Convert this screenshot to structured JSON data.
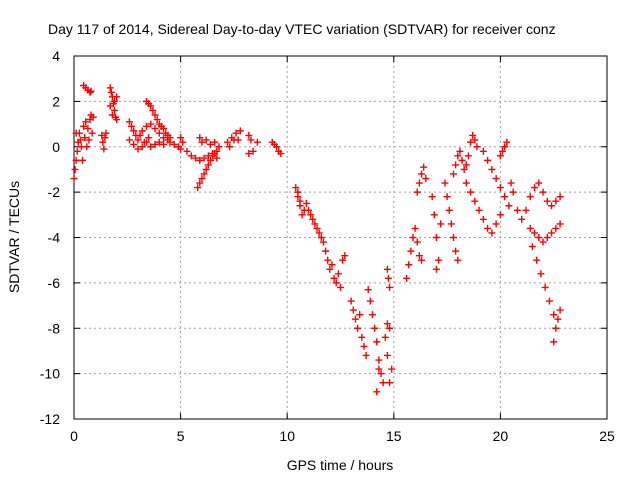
{
  "chart_data": {
    "type": "scatter",
    "title": "Day 117 of 2014, Sidereal Day-to-day VTEC variation (SDTVAR) for receiver conz",
    "xlabel": "GPS time / hours",
    "ylabel": "SDTVAR / TECUs",
    "xlim": [
      0,
      25
    ],
    "ylim": [
      -12,
      4
    ],
    "xticks": [
      0,
      5,
      10,
      15,
      20,
      25
    ],
    "yticks": [
      4,
      2,
      0,
      -2,
      -4,
      -6,
      -8,
      -10,
      -12
    ],
    "grid": true,
    "marker": "plus",
    "color": "#ff0000",
    "series": [
      {
        "points": [
          [
            0.0,
            -1.4
          ],
          [
            0.05,
            -1.0
          ],
          [
            0.1,
            -0.6
          ],
          [
            0.1,
            0.6
          ],
          [
            0.15,
            -0.2
          ],
          [
            0.2,
            0.2
          ],
          [
            0.25,
            0.6
          ],
          [
            0.3,
            0.3
          ],
          [
            0.35,
            0.0
          ],
          [
            0.4,
            -0.6
          ],
          [
            0.45,
            0.9
          ],
          [
            0.5,
            0.4
          ],
          [
            0.55,
            1.1
          ],
          [
            0.6,
            0.0
          ],
          [
            0.65,
            0.8
          ],
          [
            0.7,
            0.3
          ],
          [
            0.75,
            1.2
          ],
          [
            0.8,
            1.4
          ],
          [
            0.85,
            0.6
          ],
          [
            0.9,
            1.3
          ],
          [
            0.45,
            2.7
          ],
          [
            0.55,
            2.6
          ],
          [
            0.65,
            2.5
          ],
          [
            0.75,
            2.4
          ],
          [
            0.8,
            2.45
          ],
          [
            1.3,
            0.5
          ],
          [
            1.35,
            0.2
          ],
          [
            1.4,
            -0.1
          ],
          [
            1.45,
            0.4
          ],
          [
            1.5,
            0.6
          ],
          [
            1.7,
            2.6
          ],
          [
            1.75,
            2.4
          ],
          [
            1.8,
            2.2
          ],
          [
            1.85,
            1.9
          ],
          [
            1.9,
            1.6
          ],
          [
            1.95,
            1.3
          ],
          [
            1.7,
            1.8
          ],
          [
            1.8,
            1.4
          ],
          [
            1.9,
            2.0
          ],
          [
            2.0,
            2.2
          ],
          [
            2.0,
            1.2
          ],
          [
            2.6,
            1.1
          ],
          [
            2.7,
            0.9
          ],
          [
            2.8,
            0.7
          ],
          [
            2.9,
            0.5
          ],
          [
            3.0,
            0.3
          ],
          [
            3.1,
            0.5
          ],
          [
            3.2,
            0.7
          ],
          [
            3.3,
            0.2
          ],
          [
            3.4,
            0.9
          ],
          [
            3.5,
            0.4
          ],
          [
            2.6,
            0.3
          ],
          [
            2.8,
            0.1
          ],
          [
            3.0,
            -0.1
          ],
          [
            3.2,
            0.0
          ],
          [
            3.4,
            0.2
          ],
          [
            3.6,
            0.0
          ],
          [
            3.8,
            0.1
          ],
          [
            4.0,
            0.2
          ],
          [
            4.2,
            0.1
          ],
          [
            4.4,
            0.3
          ],
          [
            3.4,
            2.0
          ],
          [
            3.5,
            1.9
          ],
          [
            3.6,
            1.8
          ],
          [
            3.7,
            1.6
          ],
          [
            3.8,
            1.4
          ],
          [
            3.9,
            1.2
          ],
          [
            4.0,
            1.0
          ],
          [
            4.1,
            0.9
          ],
          [
            4.2,
            0.8
          ],
          [
            4.3,
            0.6
          ],
          [
            4.4,
            0.5
          ],
          [
            4.5,
            0.4
          ],
          [
            3.6,
            1.0
          ],
          [
            3.8,
            0.8
          ],
          [
            4.0,
            0.6
          ],
          [
            4.2,
            0.4
          ],
          [
            4.5,
            0.2
          ],
          [
            4.7,
            0.1
          ],
          [
            4.9,
            0.0
          ],
          [
            5.0,
            -0.1
          ],
          [
            5.0,
            0.4
          ],
          [
            5.1,
            0.2
          ],
          [
            5.3,
            -0.2
          ],
          [
            5.5,
            -0.4
          ],
          [
            5.7,
            -0.5
          ],
          [
            5.9,
            -0.6
          ],
          [
            6.1,
            -0.5
          ],
          [
            6.3,
            -0.4
          ],
          [
            6.5,
            -0.3
          ],
          [
            6.7,
            -0.2
          ],
          [
            5.8,
            -1.8
          ],
          [
            5.9,
            -1.6
          ],
          [
            6.0,
            -1.4
          ],
          [
            6.1,
            -1.2
          ],
          [
            6.2,
            -1.0
          ],
          [
            6.3,
            -0.8
          ],
          [
            6.4,
            -0.6
          ],
          [
            6.5,
            -0.4
          ],
          [
            6.6,
            -0.3
          ],
          [
            6.7,
            -0.5
          ],
          [
            5.9,
            0.4
          ],
          [
            6.0,
            0.2
          ],
          [
            6.2,
            0.3
          ],
          [
            6.4,
            0.1
          ],
          [
            6.6,
            0.2
          ],
          [
            6.8,
            0.0
          ],
          [
            7.2,
            0.2
          ],
          [
            7.3,
            0.0
          ],
          [
            7.4,
            0.4
          ],
          [
            7.5,
            0.3
          ],
          [
            7.6,
            0.6
          ],
          [
            7.7,
            0.3
          ],
          [
            7.8,
            0.7
          ],
          [
            8.2,
            0.5
          ],
          [
            8.3,
            0.3
          ],
          [
            8.6,
            0.2
          ],
          [
            8.4,
            -0.2
          ],
          [
            8.2,
            -0.3
          ],
          [
            9.3,
            0.2
          ],
          [
            9.4,
            0.1
          ],
          [
            9.5,
            0.0
          ],
          [
            9.6,
            -0.2
          ],
          [
            9.7,
            -0.3
          ],
          [
            10.4,
            -1.8
          ],
          [
            10.5,
            -2.2
          ],
          [
            10.6,
            -2.6
          ],
          [
            10.7,
            -3.0
          ],
          [
            10.5,
            -2.0
          ],
          [
            10.6,
            -2.4
          ],
          [
            10.8,
            -2.8
          ],
          [
            10.9,
            -2.5
          ],
          [
            11.0,
            -2.8
          ],
          [
            11.1,
            -3.0
          ],
          [
            11.2,
            -3.2
          ],
          [
            11.3,
            -3.4
          ],
          [
            11.4,
            -3.6
          ],
          [
            11.5,
            -3.8
          ],
          [
            11.6,
            -4.0
          ],
          [
            11.7,
            -4.2
          ],
          [
            11.8,
            -4.6
          ],
          [
            11.9,
            -5.0
          ],
          [
            12.0,
            -5.4
          ],
          [
            12.1,
            -5.2
          ],
          [
            12.2,
            -5.8
          ],
          [
            12.3,
            -6.0
          ],
          [
            12.4,
            -5.6
          ],
          [
            12.5,
            -6.2
          ],
          [
            12.6,
            -5.0
          ],
          [
            12.7,
            -4.8
          ],
          [
            13.0,
            -6.8
          ],
          [
            13.1,
            -7.2
          ],
          [
            13.2,
            -7.6
          ],
          [
            13.3,
            -8.0
          ],
          [
            13.4,
            -7.4
          ],
          [
            13.5,
            -8.4
          ],
          [
            13.6,
            -8.8
          ],
          [
            13.7,
            -9.2
          ],
          [
            13.8,
            -6.3
          ],
          [
            13.9,
            -6.8
          ],
          [
            14.0,
            -7.4
          ],
          [
            14.1,
            -8.0
          ],
          [
            14.2,
            -8.6
          ],
          [
            14.3,
            -9.4
          ],
          [
            14.4,
            -10.0
          ],
          [
            14.5,
            -10.4
          ],
          [
            14.2,
            -10.8
          ],
          [
            14.3,
            -9.8
          ],
          [
            14.6,
            -8.4
          ],
          [
            14.7,
            -9.2
          ],
          [
            14.8,
            -10.4
          ],
          [
            14.9,
            -9.8
          ],
          [
            14.8,
            -8.0
          ],
          [
            14.7,
            -7.8
          ],
          [
            14.7,
            -5.4
          ],
          [
            14.75,
            -5.8
          ],
          [
            14.8,
            -6.2
          ],
          [
            15.6,
            -5.8
          ],
          [
            15.7,
            -5.2
          ],
          [
            15.8,
            -4.6
          ],
          [
            15.9,
            -4.0
          ],
          [
            16.0,
            -3.6
          ],
          [
            16.1,
            -4.2
          ],
          [
            16.2,
            -4.8
          ],
          [
            16.3,
            -5.0
          ],
          [
            16.1,
            -2.0
          ],
          [
            16.2,
            -1.6
          ],
          [
            16.3,
            -1.2
          ],
          [
            16.4,
            -0.9
          ],
          [
            16.5,
            -1.4
          ],
          [
            16.8,
            -2.2
          ],
          [
            16.9,
            -3.0
          ],
          [
            17.0,
            -4.0
          ],
          [
            17.1,
            -5.0
          ],
          [
            17.0,
            -5.4
          ],
          [
            17.2,
            -3.4
          ],
          [
            17.4,
            -1.6
          ],
          [
            17.5,
            -2.2
          ],
          [
            17.6,
            -2.8
          ],
          [
            17.7,
            -3.4
          ],
          [
            17.8,
            -4.0
          ],
          [
            17.9,
            -4.6
          ],
          [
            18.0,
            -5.0
          ],
          [
            17.8,
            -1.2
          ],
          [
            17.9,
            -0.8
          ],
          [
            18.0,
            -0.4
          ],
          [
            18.1,
            -0.2
          ],
          [
            18.2,
            -0.6
          ],
          [
            18.3,
            -1.0
          ],
          [
            18.4,
            -0.8
          ],
          [
            18.5,
            -0.4
          ],
          [
            18.6,
            0.2
          ],
          [
            18.7,
            0.5
          ],
          [
            18.8,
            0.3
          ],
          [
            18.9,
            0.0
          ],
          [
            18.4,
            -1.6
          ],
          [
            18.6,
            -2.0
          ],
          [
            18.8,
            -2.4
          ],
          [
            19.0,
            -2.8
          ],
          [
            19.2,
            -3.2
          ],
          [
            19.4,
            -3.6
          ],
          [
            19.6,
            -3.8
          ],
          [
            19.8,
            -3.4
          ],
          [
            20.0,
            -3.0
          ],
          [
            19.2,
            -0.2
          ],
          [
            19.4,
            -0.6
          ],
          [
            19.6,
            -1.0
          ],
          [
            19.8,
            -1.4
          ],
          [
            20.0,
            -1.8
          ],
          [
            20.2,
            -2.2
          ],
          [
            20.4,
            -2.6
          ],
          [
            20.0,
            -0.4
          ],
          [
            20.1,
            -0.2
          ],
          [
            20.2,
            0.0
          ],
          [
            20.3,
            0.2
          ],
          [
            20.5,
            -1.6
          ],
          [
            20.6,
            -2.0
          ],
          [
            20.8,
            -2.8
          ],
          [
            21.0,
            -3.2
          ],
          [
            21.2,
            -2.8
          ],
          [
            21.4,
            -2.2
          ],
          [
            21.6,
            -1.8
          ],
          [
            21.8,
            -1.6
          ],
          [
            22.0,
            -2.0
          ],
          [
            22.2,
            -2.4
          ],
          [
            22.4,
            -2.6
          ],
          [
            22.6,
            -2.4
          ],
          [
            22.8,
            -2.2
          ],
          [
            21.4,
            -3.6
          ],
          [
            21.6,
            -3.8
          ],
          [
            21.8,
            -4.0
          ],
          [
            22.0,
            -4.2
          ],
          [
            22.2,
            -4.0
          ],
          [
            22.4,
            -3.8
          ],
          [
            22.6,
            -3.6
          ],
          [
            22.8,
            -3.4
          ],
          [
            21.5,
            -4.4
          ],
          [
            21.7,
            -5.0
          ],
          [
            21.9,
            -5.6
          ],
          [
            22.1,
            -6.2
          ],
          [
            22.3,
            -6.8
          ],
          [
            22.5,
            -7.4
          ],
          [
            22.6,
            -8.0
          ],
          [
            22.5,
            -8.6
          ],
          [
            22.7,
            -7.6
          ],
          [
            22.8,
            -7.2
          ]
        ]
      }
    ]
  }
}
